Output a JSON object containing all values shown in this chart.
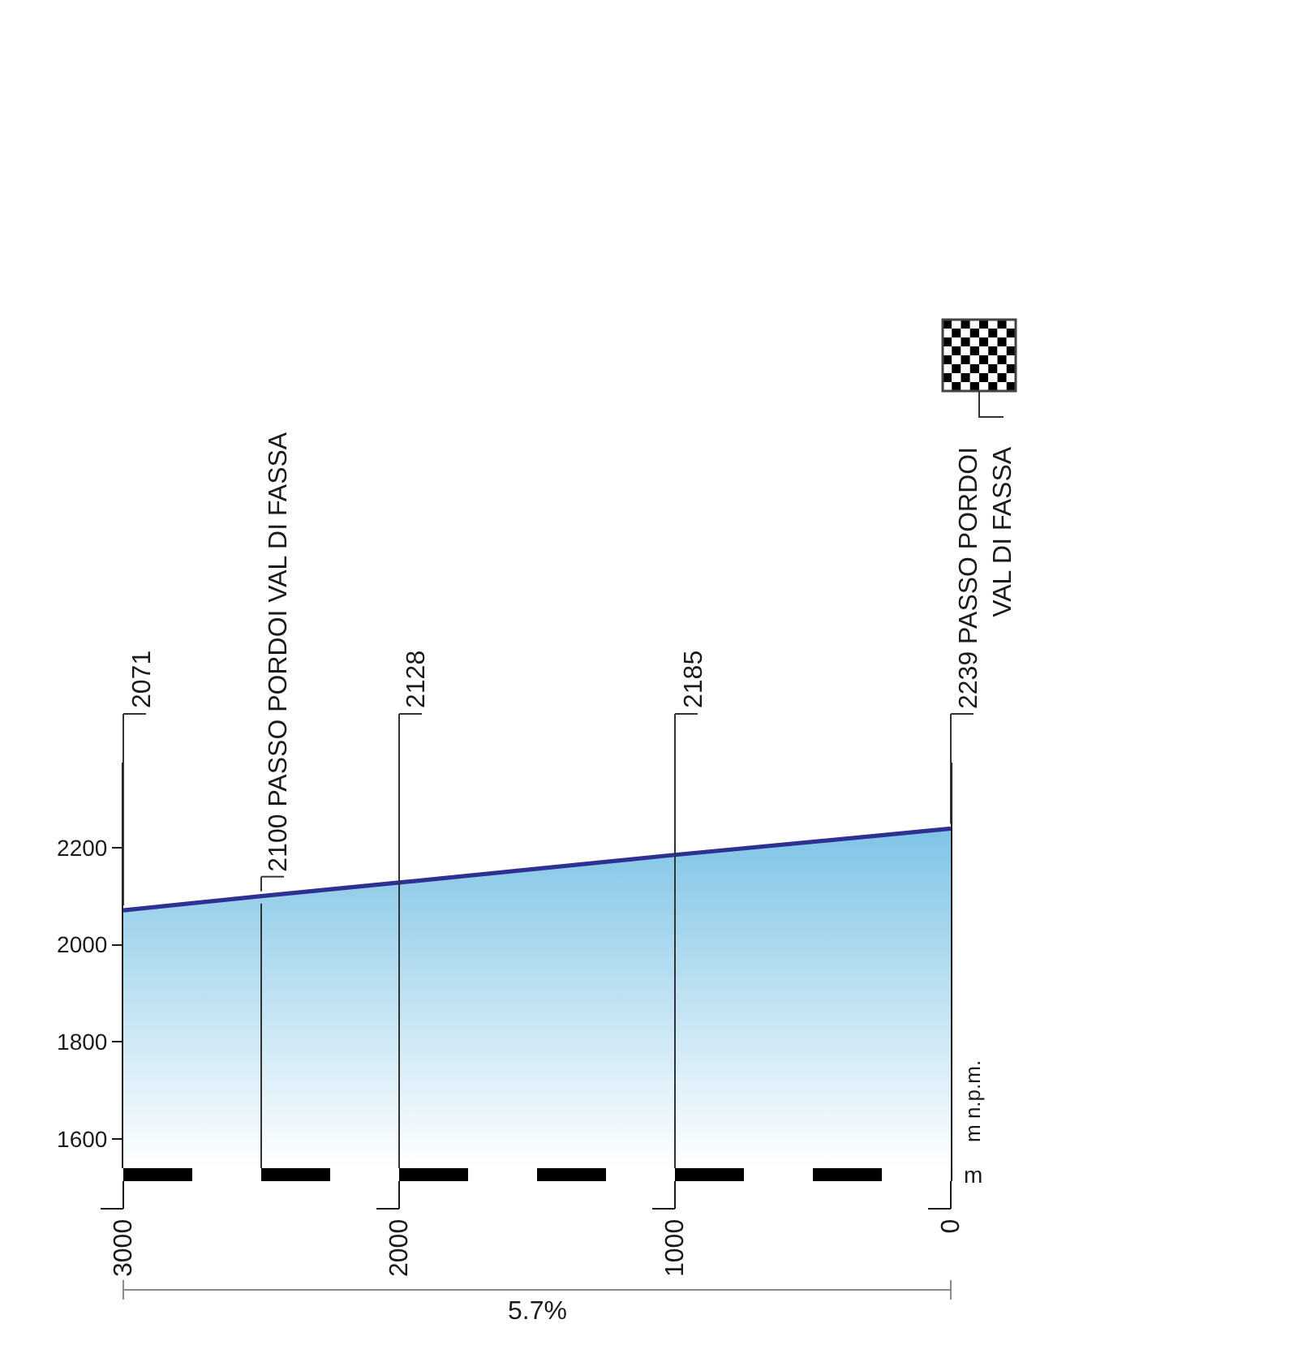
{
  "chart_data": {
    "type": "area",
    "x": [
      3000,
      2500,
      2000,
      1000,
      0
    ],
    "xlim": [
      3000,
      0
    ],
    "xticks": [
      3000,
      2000,
      1000,
      0
    ],
    "ylim": [
      1540,
      2375
    ],
    "yticks": [
      1600,
      1800,
      2000,
      2200
    ],
    "xlabel": "m",
    "ylabel": "m n.p.m.",
    "grid": "x",
    "annotations": [
      {
        "text": "2071",
        "x": 3000,
        "y": 2071
      },
      {
        "text": "2100 PASSO PORDOI VAL DI FASSA",
        "x": 2500,
        "y": 2100
      },
      {
        "text": "2128",
        "x": 2000,
        "y": 2128
      },
      {
        "text": "2185",
        "x": 1000,
        "y": 2185
      },
      {
        "text": "2239 PASSO PORDOI\nVAL DI FASSA",
        "x": 0,
        "y": 2239
      },
      "5.7%"
    ],
    "series": [
      {
        "color": "#2e3192",
        "values": [
          2071,
          2100,
          2128,
          2185,
          2239
        ]
      }
    ]
  }
}
